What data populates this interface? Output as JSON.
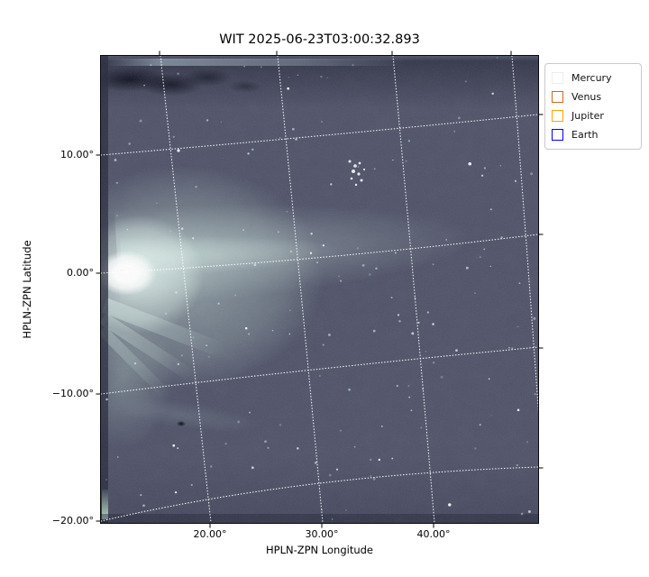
{
  "figure": {
    "title": "WIT 2025-06-23T03:00:32.893"
  },
  "chart_data": {
    "type": "heatmap",
    "title": "WIT 2025-06-23T03:00:32.893",
    "xlabel": "HPLN-ZPN Longitude",
    "ylabel": "HPLN-ZPN Latitude",
    "x_ticks": [
      {
        "label": "20.00°",
        "value": 20
      },
      {
        "label": "30.00°",
        "value": 30
      },
      {
        "label": "40.00°",
        "value": 40
      }
    ],
    "y_ticks": [
      {
        "label": "10.00°",
        "value": 10
      },
      {
        "label": "0.00°",
        "value": 0
      },
      {
        "label": "−10.00°",
        "value": -10
      },
      {
        "label": "−20.00°",
        "value": -20
      }
    ],
    "grid": true,
    "grid_style": "dotted curved celestial graticule (ZPN projection)",
    "legend": {
      "position": "upper-right-outside",
      "entries": [
        {
          "label": "Mercury",
          "color": "#ededed"
        },
        {
          "label": "Venus",
          "color": "#cd671e"
        },
        {
          "label": "Jupiter",
          "color": "#ffa500"
        },
        {
          "label": "Earth",
          "color": "#0000ff"
        }
      ]
    },
    "image_description": "Wide-field white-light heliospheric image on a slate blue-gray background: a saturated bright white source at the left edge near 0° latitude with a broad faint dust tail extending right across the frame rising slightly, ray-like streamers fanning toward lower left, dark artifact blotches along the top edge, a small dark speck near 17°/−12°, faint stars throughout and a small star cluster near 33° longitude, 8° latitude.",
    "image_colors": {
      "background": "#4d5066",
      "bright_core": "#ffffff",
      "tail": "#cee5df",
      "top_artifacts": "#0a0c1c"
    }
  }
}
